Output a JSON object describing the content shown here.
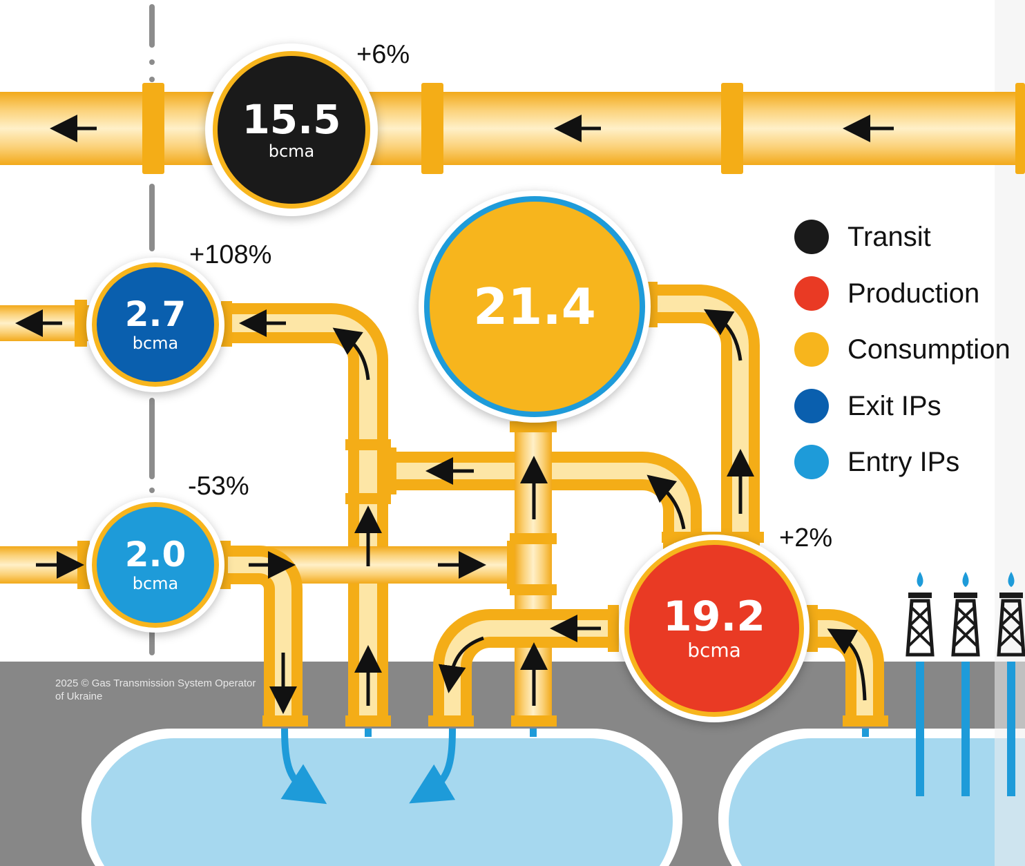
{
  "nodes": {
    "transit": {
      "value": "15.5",
      "unit": "bcma",
      "change": "+6%",
      "color": "#1a1a1a"
    },
    "exit": {
      "value": "2.7",
      "unit": "bcma",
      "change": "+108%",
      "color": "#0a5fae"
    },
    "entry": {
      "value": "2.0",
      "unit": "bcma",
      "change": "-53%",
      "color": "#1e9bd9"
    },
    "consumption": {
      "value": "21.4",
      "color": "#f7b51d"
    },
    "production": {
      "value": "19.2",
      "unit": "bcma",
      "change": "+2%",
      "color": "#e93a24"
    }
  },
  "legend": [
    {
      "label": "Transit",
      "color": "#1a1a1a"
    },
    {
      "label": "Production",
      "color": "#e93a24"
    },
    {
      "label": "Consumption",
      "color": "#f7b51d"
    },
    {
      "label": "Exit IPs",
      "color": "#0a5fae"
    },
    {
      "label": "Entry IPs",
      "color": "#1e9bd9"
    }
  ],
  "copyright": "2025 © Gas Transmission System Operator of Ukraine",
  "colors": {
    "pipe": "#f7b51d",
    "pipe_light": "#ffe9b0",
    "ground": "#8a8a8a",
    "storage": "#a6d8ef",
    "flow_arrow": "#1e9bd9"
  }
}
